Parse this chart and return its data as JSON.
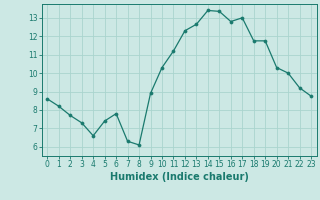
{
  "x": [
    0,
    1,
    2,
    3,
    4,
    5,
    6,
    7,
    8,
    9,
    10,
    11,
    12,
    13,
    14,
    15,
    16,
    17,
    18,
    19,
    20,
    21,
    22,
    23
  ],
  "y": [
    8.6,
    8.2,
    7.7,
    7.3,
    6.6,
    7.4,
    7.8,
    6.3,
    6.1,
    8.9,
    10.3,
    11.2,
    12.3,
    12.65,
    13.4,
    13.35,
    12.8,
    13.0,
    11.75,
    11.75,
    10.3,
    10.0,
    9.2,
    8.75
  ],
  "line_color": "#1a7a6e",
  "marker": "o",
  "marker_size": 2.2,
  "bg_color": "#cce8e4",
  "grid_color": "#aad4ce",
  "xlabel": "Humidex (Indice chaleur)",
  "xlim": [
    -0.5,
    23.5
  ],
  "ylim": [
    5.5,
    13.75
  ],
  "yticks": [
    6,
    7,
    8,
    9,
    10,
    11,
    12,
    13
  ],
  "xticks": [
    0,
    1,
    2,
    3,
    4,
    5,
    6,
    7,
    8,
    9,
    10,
    11,
    12,
    13,
    14,
    15,
    16,
    17,
    18,
    19,
    20,
    21,
    22,
    23
  ],
  "tick_color": "#1a7a6e",
  "label_color": "#1a7a6e",
  "spine_color": "#1a7a6e",
  "tick_labelsize": 5.5,
  "xlabel_fontsize": 7.0
}
